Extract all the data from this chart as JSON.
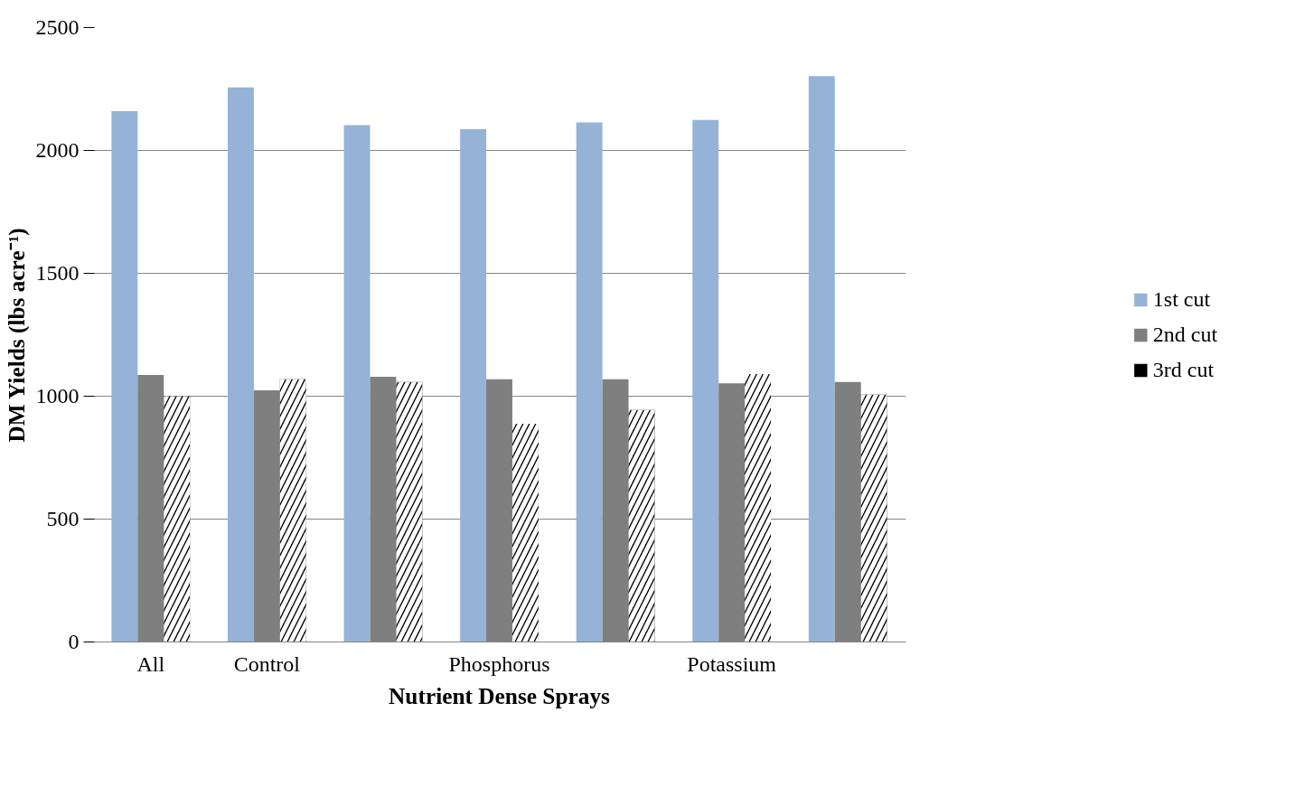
{
  "chart_data": {
    "type": "bar",
    "xlabel": "Nutrient Dense Sprays",
    "ylabel": "DM Yields (lbs acre⁻¹)",
    "categories": [
      "All",
      "Control",
      null,
      "Phosphorus",
      null,
      "Potassium",
      null
    ],
    "series": [
      {
        "name": "1st cut",
        "color": "#95b3d7",
        "values": [
          2160,
          2256,
          2103,
          2086,
          2114,
          2124,
          2302
        ]
      },
      {
        "name": "2nd cut",
        "color": "#7f7f7f",
        "values": [
          1086,
          1024,
          1079,
          1069,
          1069,
          1052,
          1058
        ]
      },
      {
        "name": "3rd cut",
        "color": "#000000",
        "values": [
          1000,
          1069,
          1058,
          888,
          944,
          1090,
          1006
        ]
      }
    ],
    "ylim": [
      0,
      2500
    ],
    "yticks": [
      0,
      500,
      1000,
      1500,
      2000,
      2500
    ],
    "grid": "y",
    "legend": "right"
  }
}
